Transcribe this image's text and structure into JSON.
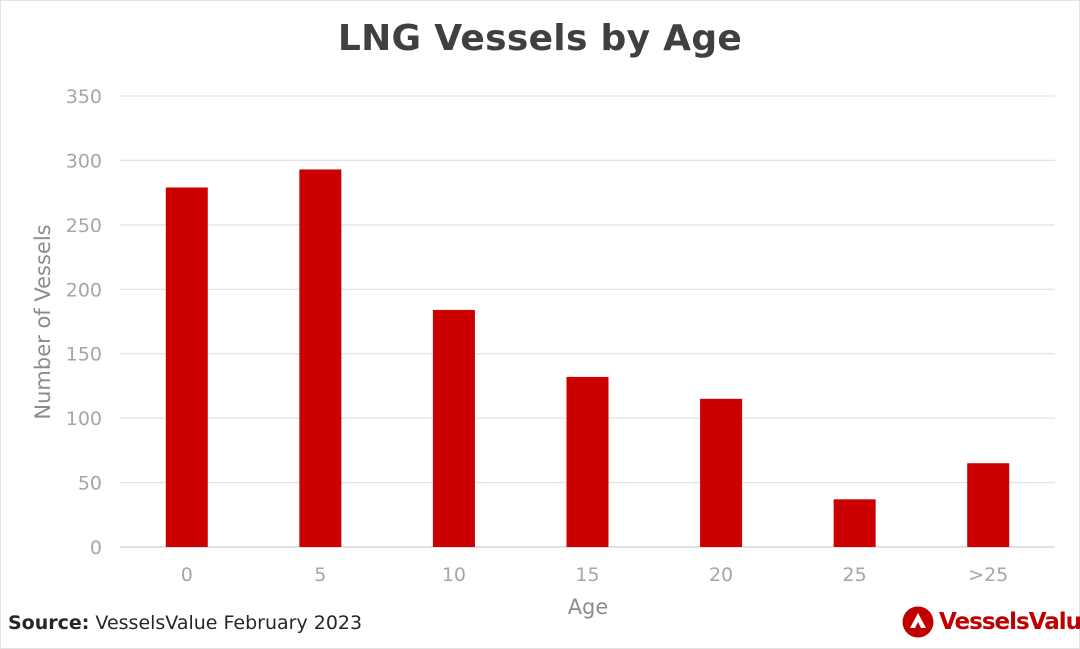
{
  "chart_data": {
    "type": "bar",
    "title": "LNG Vessels by Age",
    "xlabel": "Age",
    "ylabel": "Number of Vessels",
    "categories": [
      "0",
      "5",
      "10",
      "15",
      "20",
      "25",
      ">25"
    ],
    "values": [
      279,
      293,
      184,
      132,
      115,
      37,
      65
    ],
    "ylim": [
      0,
      350
    ],
    "yticks": [
      0,
      50,
      100,
      150,
      200,
      250,
      300,
      350
    ],
    "grid": true,
    "legend": "none",
    "bar_color": "#cc0000"
  },
  "footer": {
    "source_label": "Source:",
    "source_text": " VesselsValue February 2023"
  },
  "logo": {
    "text": "VesselsValue",
    "color": "#c00000"
  }
}
